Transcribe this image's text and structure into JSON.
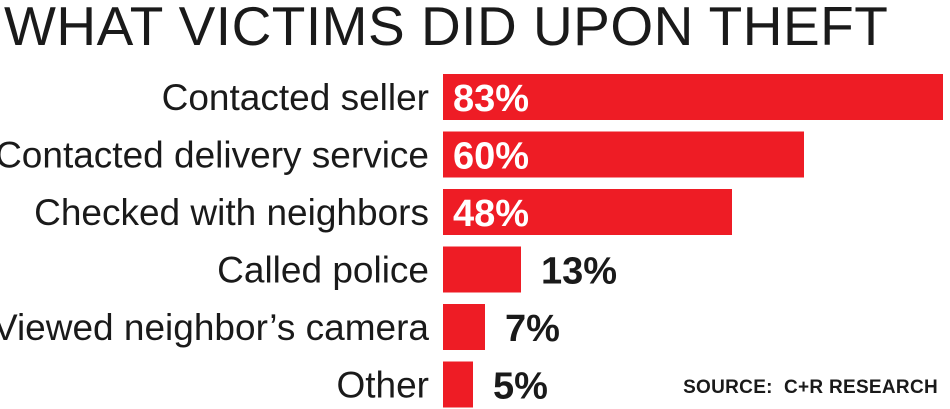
{
  "title": "WHAT VICTIMS DID UPON THEFT",
  "source": "SOURCE:  C+R RESEARCH",
  "colors": {
    "bar": "#ee1c25",
    "text": "#1a1a1a",
    "inlabel": "#ffffff"
  },
  "chart_data": {
    "type": "bar",
    "orientation": "horizontal",
    "title": "WHAT VICTIMS DID UPON THEFT",
    "categories": [
      "Contacted seller",
      "Contacted delivery service",
      "Checked with neighbors",
      "Called police",
      "Viewed neighbor’s camera",
      "Other"
    ],
    "values": [
      83,
      60,
      48,
      13,
      7,
      5
    ],
    "value_labels": [
      "83%",
      "60%",
      "48%",
      "13%",
      "7%",
      "5%"
    ],
    "unit": "%",
    "xlim": [
      0,
      83
    ],
    "grid": false,
    "legend": "none"
  }
}
